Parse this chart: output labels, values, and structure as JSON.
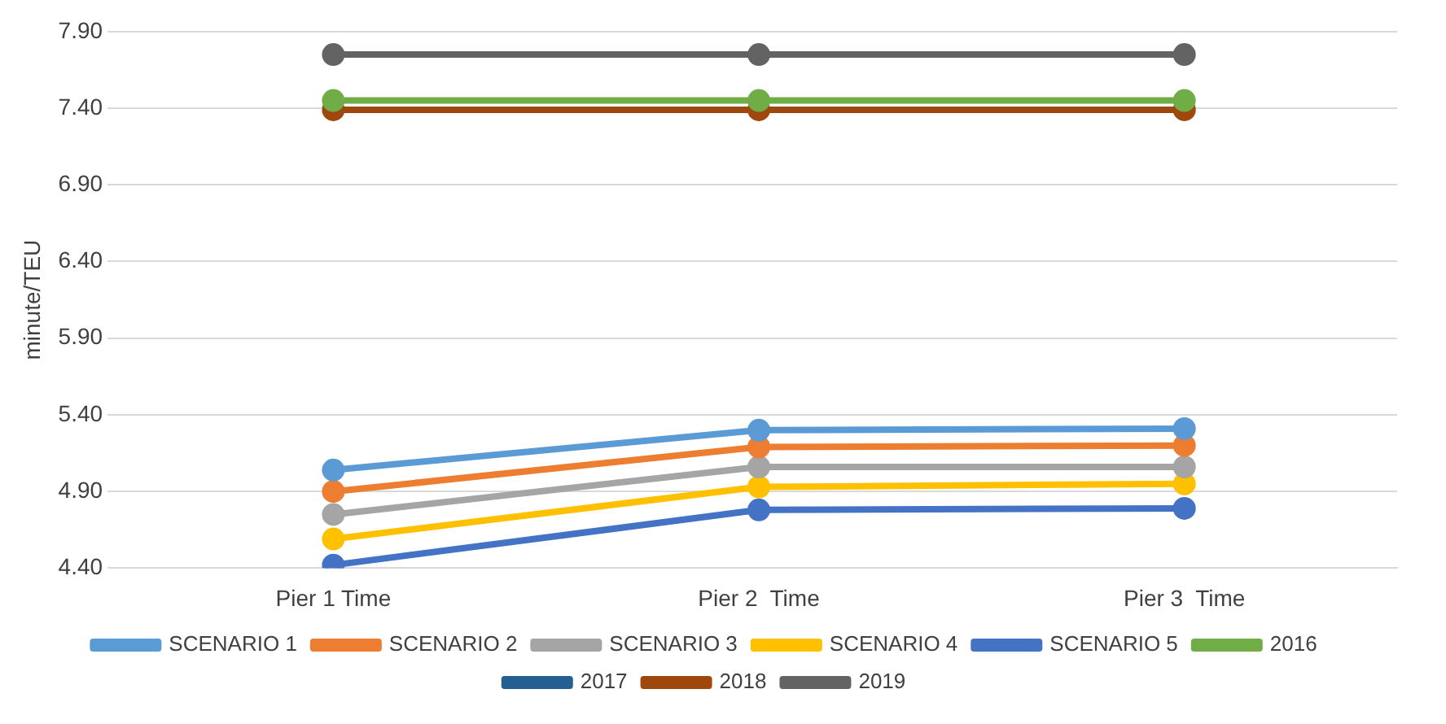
{
  "chart_data": {
    "type": "line",
    "ylabel": "minute/TEU",
    "categories": [
      "Pier 1 Time",
      "Pier 2  Time",
      "Pier 3  Time"
    ],
    "ylim": [
      4.4,
      7.9
    ],
    "yticks": [
      {
        "value": 4.4,
        "label": "4.40"
      },
      {
        "value": 4.9,
        "label": "4.90"
      },
      {
        "value": 5.4,
        "label": "5.40"
      },
      {
        "value": 5.9,
        "label": "5.90"
      },
      {
        "value": 6.4,
        "label": "6.40"
      },
      {
        "value": 6.9,
        "label": "6.90"
      },
      {
        "value": 7.4,
        "label": "7.40"
      },
      {
        "value": 7.9,
        "label": "7.90"
      }
    ],
    "grid": "y",
    "legend": "bottom",
    "marker": "circle",
    "line_style": "solid",
    "series": [
      {
        "name": "SCENARIO 1",
        "color": "#5b9bd5",
        "values": [
          5.04,
          5.3,
          5.31
        ]
      },
      {
        "name": "SCENARIO 2",
        "color": "#ed7d31",
        "values": [
          4.9,
          5.19,
          5.2
        ]
      },
      {
        "name": "SCENARIO 3",
        "color": "#a5a5a5",
        "values": [
          4.75,
          5.06,
          5.06
        ]
      },
      {
        "name": "SCENARIO 4",
        "color": "#ffc000",
        "values": [
          4.59,
          4.93,
          4.95
        ]
      },
      {
        "name": "SCENARIO 5",
        "color": "#4472c4",
        "values": [
          4.42,
          4.78,
          4.79
        ]
      },
      {
        "name": "2016",
        "color": "#70ad47",
        "values": [
          7.45,
          7.45,
          7.45
        ]
      },
      {
        "name": "2017",
        "color": "#255e91",
        "values": [
          null,
          null,
          null
        ]
      },
      {
        "name": "2018",
        "color": "#9e480e",
        "values": [
          7.39,
          7.39,
          7.39
        ]
      },
      {
        "name": "2019",
        "color": "#636363",
        "values": [
          7.75,
          7.75,
          7.75
        ]
      }
    ]
  }
}
